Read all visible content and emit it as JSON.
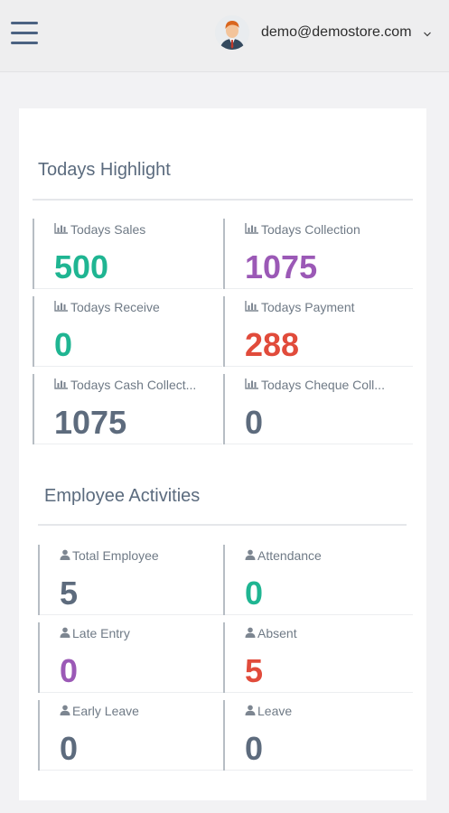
{
  "header": {
    "user_email": "demo@demostore.com",
    "caret": "chevron-down-icon"
  },
  "highlight": {
    "title": "Todays Highlight",
    "tiles": [
      {
        "label": "Todays Sales",
        "value": "500",
        "icon": "bar-chart-icon",
        "color": "#1fb592"
      },
      {
        "label": "Todays Collection",
        "value": "1075",
        "icon": "bar-chart-icon",
        "color": "#9b59b6"
      },
      {
        "label": "Todays Receive",
        "value": "0",
        "icon": "bar-chart-icon",
        "color": "#1fb592"
      },
      {
        "label": "Todays Payment",
        "value": "288",
        "icon": "bar-chart-icon",
        "color": "#e14b3b"
      },
      {
        "label": "Todays Cash Collect...",
        "value": "1075",
        "icon": "bar-chart-icon",
        "color": "#5d6b7d"
      },
      {
        "label": "Todays Cheque Coll...",
        "value": "0",
        "icon": "bar-chart-icon",
        "color": "#5d6b7d"
      }
    ]
  },
  "employee": {
    "title": "Employee Activities",
    "tiles": [
      {
        "label": "Total Employee",
        "value": "5",
        "icon": "user-icon",
        "color": "#5d6b7d"
      },
      {
        "label": "Attendance",
        "value": "0",
        "icon": "user-icon",
        "color": "#1fb592"
      },
      {
        "label": "Late Entry",
        "value": "0",
        "icon": "user-icon",
        "color": "#9b59b6"
      },
      {
        "label": "Absent",
        "value": "5",
        "icon": "user-icon",
        "color": "#e14b3b"
      },
      {
        "label": "Early Leave",
        "value": "0",
        "icon": "user-icon",
        "color": "#5d6b7d"
      },
      {
        "label": "Leave",
        "value": "0",
        "icon": "user-icon",
        "color": "#5d6b7d"
      }
    ]
  }
}
